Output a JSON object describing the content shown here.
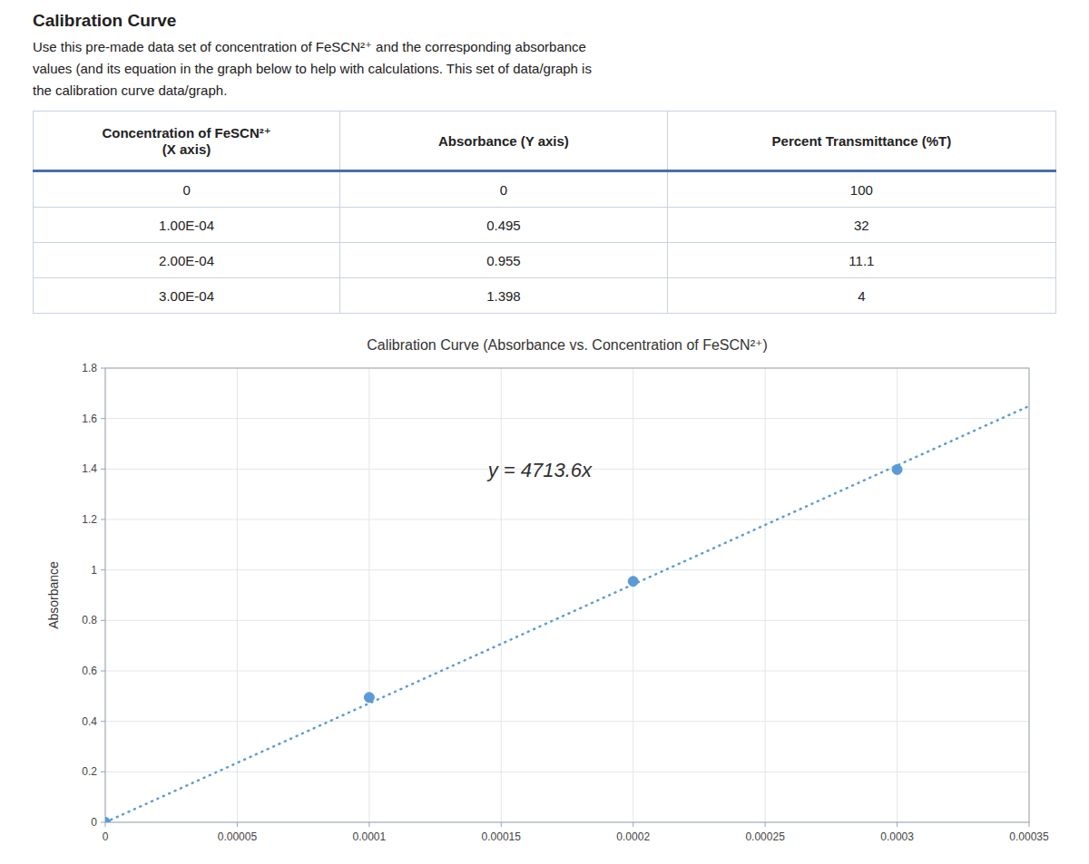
{
  "page": {
    "heading": "Calibration Curve",
    "description": [
      "Use this pre-made data set of concentration of FeSCN²⁺ and the corresponding absorbance",
      "values (and its equation in the graph below to help with calculations. This set of data/graph is",
      "the calibration curve data/graph."
    ],
    "table": {
      "columns": [
        [
          "Concentration of FeSCN²⁺",
          "(X axis)"
        ],
        [
          "Absorbance (Y axis)"
        ],
        [
          "Percent Transmittance (%T)"
        ]
      ],
      "rows": [
        [
          "0",
          "0",
          "100"
        ],
        [
          "1.00E-04",
          "0.495",
          "32"
        ],
        [
          "2.00E-04",
          "0.955",
          "11.1"
        ],
        [
          "3.00E-04",
          "1.398",
          "4"
        ]
      ]
    }
  },
  "chart_data": {
    "type": "scatter",
    "title": "Calibration Curve (Absorbance vs. Concentration of FeSCN²⁺)",
    "ylabel": "Absorbance",
    "series": [
      {
        "type": "scatter",
        "color": "#5B9BD5",
        "marker": "circle",
        "x": [
          0,
          0.0001,
          0.0002,
          0.0003
        ],
        "values": [
          0,
          0.495,
          0.955,
          1.398
        ]
      },
      {
        "type": "line",
        "color": "#5B9BD5",
        "line_style": "dotted",
        "x": [
          0,
          0.00035
        ],
        "values": [
          0,
          1.64976
        ]
      }
    ],
    "annotations": [
      {
        "text": "y = 4713.6x",
        "x": 0.000145,
        "y": 1.37
      }
    ],
    "xlim": [
      0,
      0.00035
    ],
    "ylim": [
      0,
      1.8
    ],
    "xticks": [
      0,
      5e-05,
      0.0001,
      0.00015,
      0.0002,
      0.00025,
      0.0003,
      0.00035
    ],
    "yticks": [
      0,
      0.2,
      0.4,
      0.6,
      0.8,
      1,
      1.2,
      1.4,
      1.6,
      1.8
    ],
    "grid": true
  }
}
